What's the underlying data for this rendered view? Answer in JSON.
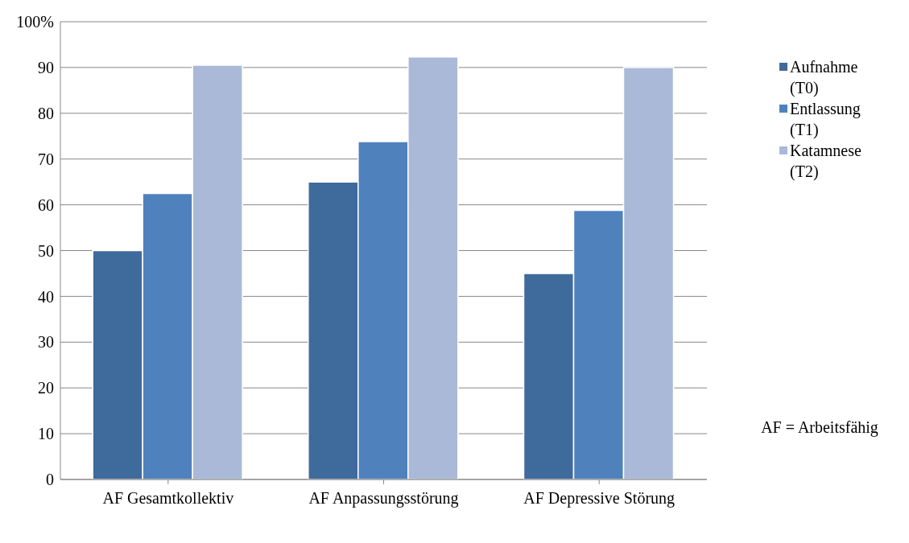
{
  "chart_data": {
    "type": "bar",
    "categories": [
      "AF Gesamtkollektiv",
      "AF Anpassungsstörung",
      "AF Depressive Störung"
    ],
    "series": [
      {
        "name": "Aufnahme (T0)",
        "color": "#3f6a9c",
        "values": [
          50,
          65,
          45
        ]
      },
      {
        "name": "Entlassung (T1)",
        "color": "#4f81bd",
        "values": [
          62.5,
          73.8,
          58.8
        ]
      },
      {
        "name": "Katamnese (T2)",
        "color": "#aab9d8",
        "values": [
          90.5,
          92.3,
          90
        ]
      }
    ],
    "ylim": [
      0,
      100
    ],
    "yticks": [
      0,
      10,
      20,
      30,
      40,
      50,
      60,
      70,
      80,
      90,
      {
        "value": 100,
        "label": "100%"
      }
    ],
    "grid": "y",
    "legend": "right",
    "annotations": [
      "AF = Arbeitsfähig"
    ]
  }
}
